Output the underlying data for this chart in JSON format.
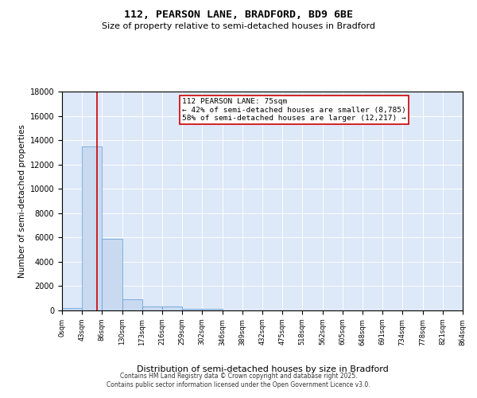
{
  "title1": "112, PEARSON LANE, BRADFORD, BD9 6BE",
  "title2": "Size of property relative to semi-detached houses in Bradford",
  "xlabel": "Distribution of semi-detached houses by size in Bradford",
  "ylabel": "Number of semi-detached properties",
  "annotation_title": "112 PEARSON LANE: 75sqm",
  "annotation_line2": "← 42% of semi-detached houses are smaller (8,785)",
  "annotation_line3": "58% of semi-detached houses are larger (12,217) →",
  "property_size": 75,
  "bin_edges": [
    0,
    43,
    86,
    130,
    173,
    216,
    259,
    302,
    346,
    389,
    432,
    475,
    518,
    562,
    605,
    648,
    691,
    734,
    778,
    821,
    864
  ],
  "bar_heights": [
    200,
    13500,
    5900,
    900,
    300,
    300,
    150,
    100,
    20,
    10,
    5,
    5,
    3,
    3,
    2,
    2,
    2,
    2,
    2,
    2
  ],
  "bar_color": "#c9d9f0",
  "bar_edge_color": "#5b9bd5",
  "red_line_color": "#cc0000",
  "annotation_box_color": "#cc0000",
  "ylim": [
    0,
    18000
  ],
  "yticks": [
    0,
    2000,
    4000,
    6000,
    8000,
    10000,
    12000,
    14000,
    16000,
    18000
  ],
  "background_color": "#dde8f8",
  "footer1": "Contains HM Land Registry data © Crown copyright and database right 2025.",
  "footer2": "Contains public sector information licensed under the Open Government Licence v3.0."
}
